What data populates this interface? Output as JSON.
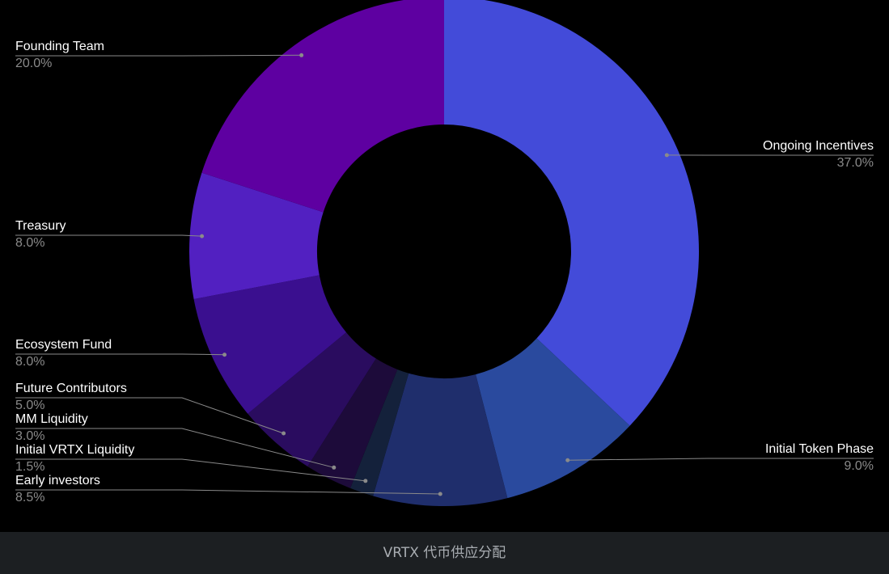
{
  "chart_data": {
    "type": "donut",
    "title": "VRTX 代币供应分配",
    "categories": [
      "Ongoing Incentives",
      "Initial Token Phase",
      "Early investors",
      "Initial VRTX Liquidity",
      "MM Liquidity",
      "Future Contributors",
      "Ecosystem Fund",
      "Treasury",
      "Founding Team"
    ],
    "values": [
      37,
      9,
      8.5,
      1.5,
      3,
      5,
      8,
      8,
      20
    ],
    "value_labels": [
      "37.0%",
      "9.0%",
      "8.5%",
      "1.5%",
      "3.0%",
      "5.0%",
      "8.0%",
      "8.0%",
      "20.0%"
    ],
    "colors": [
      "#434bd9",
      "#2a4a9e",
      "#1f2e6c",
      "#14213b",
      "#1d0b3a",
      "#2a0c5f",
      "#3a0f8f",
      "#5220c1",
      "#5e00a1"
    ]
  }
}
